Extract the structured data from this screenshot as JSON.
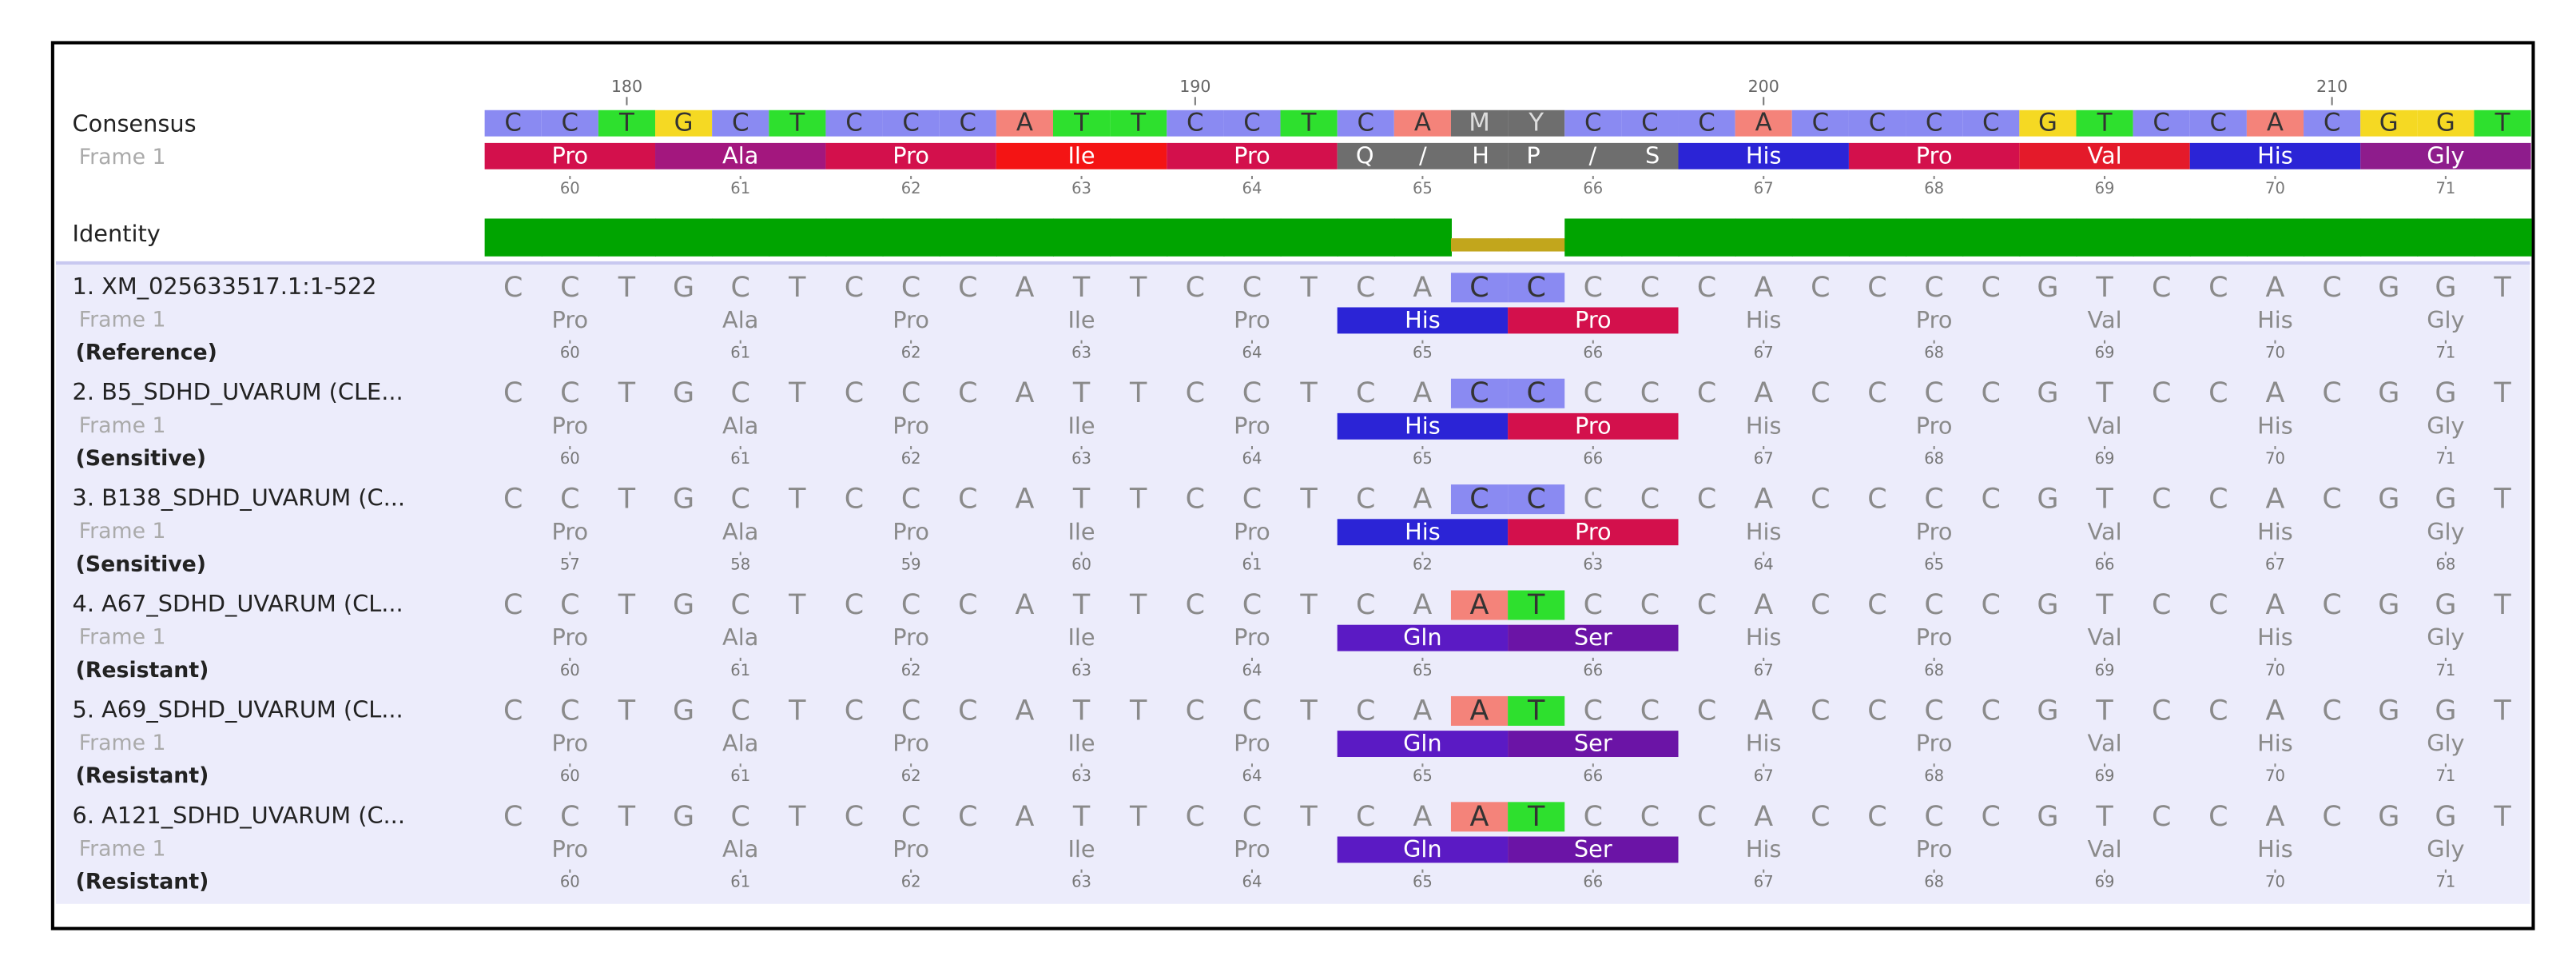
{
  "labels": {
    "consensus": "Consensus",
    "frame": "Frame 1",
    "identity": "Identity"
  },
  "ruler": [
    null,
    null,
    180,
    null,
    null,
    null,
    null,
    null,
    null,
    null,
    null,
    null,
    190,
    null,
    null,
    null,
    null,
    null,
    null,
    null,
    null,
    null,
    200,
    null,
    null,
    null,
    null,
    null,
    null,
    null,
    null,
    null,
    210,
    null,
    null,
    null
  ],
  "consensus": {
    "bases": [
      "C",
      "C",
      "T",
      "G",
      "C",
      "T",
      "C",
      "C",
      "C",
      "A",
      "T",
      "T",
      "C",
      "C",
      "T",
      "C",
      "A",
      "M",
      "Y",
      "C",
      "C",
      "C",
      "A",
      "C",
      "C",
      "C",
      "C",
      "G",
      "T",
      "C",
      "C",
      "A",
      "C",
      "G",
      "G",
      "T"
    ],
    "frame": [
      {
        "name": "Pro",
        "number": 60
      },
      {
        "name": "Ala",
        "number": 61
      },
      {
        "name": "Pro",
        "number": 62
      },
      {
        "name": "Ile",
        "number": 63
      },
      {
        "name": "Pro",
        "number": 64
      },
      {
        "name": "Q / H",
        "number": 65
      },
      {
        "name": "P / S",
        "number": 66
      },
      {
        "name": "His",
        "number": 67
      },
      {
        "name": "Pro",
        "number": 68
      },
      {
        "name": "Val",
        "number": 69
      },
      {
        "name": "His",
        "number": 70
      },
      {
        "name": "Gly",
        "number": 71
      }
    ]
  },
  "rows": [
    {
      "name": "1. XM_025633517.1:1-522",
      "frame_label": "Frame 1",
      "group": "(Reference)",
      "bases": [
        "C",
        "C",
        "T",
        "G",
        "C",
        "T",
        "C",
        "C",
        "C",
        "A",
        "T",
        "T",
        "C",
        "C",
        "T",
        "C",
        "A",
        "C",
        "C",
        "C",
        "C",
        "C",
        "A",
        "C",
        "C",
        "C",
        "C",
        "G",
        "T",
        "C",
        "C",
        "A",
        "C",
        "G",
        "G",
        "T"
      ],
      "frame": [
        {
          "name": "Pro",
          "number": 60
        },
        {
          "name": "Ala",
          "number": 61
        },
        {
          "name": "Pro",
          "number": 62
        },
        {
          "name": "Ile",
          "number": 63
        },
        {
          "name": "Pro",
          "number": 64
        },
        {
          "name": "His",
          "number": 65
        },
        {
          "name": "Pro",
          "number": 66
        },
        {
          "name": "His",
          "number": 67
        },
        {
          "name": "Pro",
          "number": 68
        },
        {
          "name": "Val",
          "number": 69
        },
        {
          "name": "His",
          "number": 70
        },
        {
          "name": "Gly",
          "number": 71
        }
      ]
    },
    {
      "name": "2. B5_SDHD_UVARUM (CLE...",
      "frame_label": "Frame 1",
      "group": "(Sensitive)",
      "bases": [
        "C",
        "C",
        "T",
        "G",
        "C",
        "T",
        "C",
        "C",
        "C",
        "A",
        "T",
        "T",
        "C",
        "C",
        "T",
        "C",
        "A",
        "C",
        "C",
        "C",
        "C",
        "C",
        "A",
        "C",
        "C",
        "C",
        "C",
        "G",
        "T",
        "C",
        "C",
        "A",
        "C",
        "G",
        "G",
        "T"
      ],
      "frame": [
        {
          "name": "Pro",
          "number": 60
        },
        {
          "name": "Ala",
          "number": 61
        },
        {
          "name": "Pro",
          "number": 62
        },
        {
          "name": "Ile",
          "number": 63
        },
        {
          "name": "Pro",
          "number": 64
        },
        {
          "name": "His",
          "number": 65
        },
        {
          "name": "Pro",
          "number": 66
        },
        {
          "name": "His",
          "number": 67
        },
        {
          "name": "Pro",
          "number": 68
        },
        {
          "name": "Val",
          "number": 69
        },
        {
          "name": "His",
          "number": 70
        },
        {
          "name": "Gly",
          "number": 71
        }
      ]
    },
    {
      "name": "3. B138_SDHD_UVARUM (C...",
      "frame_label": "Frame 1",
      "group": "(Sensitive)",
      "bases": [
        "C",
        "C",
        "T",
        "G",
        "C",
        "T",
        "C",
        "C",
        "C",
        "A",
        "T",
        "T",
        "C",
        "C",
        "T",
        "C",
        "A",
        "C",
        "C",
        "C",
        "C",
        "C",
        "A",
        "C",
        "C",
        "C",
        "C",
        "G",
        "T",
        "C",
        "C",
        "A",
        "C",
        "G",
        "G",
        "T"
      ],
      "frame": [
        {
          "name": "Pro",
          "number": 57
        },
        {
          "name": "Ala",
          "number": 58
        },
        {
          "name": "Pro",
          "number": 59
        },
        {
          "name": "Ile",
          "number": 60
        },
        {
          "name": "Pro",
          "number": 61
        },
        {
          "name": "His",
          "number": 62
        },
        {
          "name": "Pro",
          "number": 63
        },
        {
          "name": "His",
          "number": 64
        },
        {
          "name": "Pro",
          "number": 65
        },
        {
          "name": "Val",
          "number": 66
        },
        {
          "name": "His",
          "number": 67
        },
        {
          "name": "Gly",
          "number": 68
        }
      ]
    },
    {
      "name": "4. A67_SDHD_UVARUM (CL...",
      "frame_label": "Frame 1",
      "group": "(Resistant)",
      "bases": [
        "C",
        "C",
        "T",
        "G",
        "C",
        "T",
        "C",
        "C",
        "C",
        "A",
        "T",
        "T",
        "C",
        "C",
        "T",
        "C",
        "A",
        "A",
        "T",
        "C",
        "C",
        "C",
        "A",
        "C",
        "C",
        "C",
        "C",
        "G",
        "T",
        "C",
        "C",
        "A",
        "C",
        "G",
        "G",
        "T"
      ],
      "frame": [
        {
          "name": "Pro",
          "number": 60
        },
        {
          "name": "Ala",
          "number": 61
        },
        {
          "name": "Pro",
          "number": 62
        },
        {
          "name": "Ile",
          "number": 63
        },
        {
          "name": "Pro",
          "number": 64
        },
        {
          "name": "Gln",
          "number": 65
        },
        {
          "name": "Ser",
          "number": 66
        },
        {
          "name": "His",
          "number": 67
        },
        {
          "name": "Pro",
          "number": 68
        },
        {
          "name": "Val",
          "number": 69
        },
        {
          "name": "His",
          "number": 70
        },
        {
          "name": "Gly",
          "number": 71
        }
      ]
    },
    {
      "name": "5. A69_SDHD_UVARUM (CL...",
      "frame_label": "Frame 1",
      "group": "(Resistant)",
      "bases": [
        "C",
        "C",
        "T",
        "G",
        "C",
        "T",
        "C",
        "C",
        "C",
        "A",
        "T",
        "T",
        "C",
        "C",
        "T",
        "C",
        "A",
        "A",
        "T",
        "C",
        "C",
        "C",
        "A",
        "C",
        "C",
        "C",
        "C",
        "G",
        "T",
        "C",
        "C",
        "A",
        "C",
        "G",
        "G",
        "T"
      ],
      "frame": [
        {
          "name": "Pro",
          "number": 60
        },
        {
          "name": "Ala",
          "number": 61
        },
        {
          "name": "Pro",
          "number": 62
        },
        {
          "name": "Ile",
          "number": 63
        },
        {
          "name": "Pro",
          "number": 64
        },
        {
          "name": "Gln",
          "number": 65
        },
        {
          "name": "Ser",
          "number": 66
        },
        {
          "name": "His",
          "number": 67
        },
        {
          "name": "Pro",
          "number": 68
        },
        {
          "name": "Val",
          "number": 69
        },
        {
          "name": "His",
          "number": 70
        },
        {
          "name": "Gly",
          "number": 71
        }
      ]
    },
    {
      "name": "6. A121_SDHD_UVARUM (C...",
      "frame_label": "Frame 1",
      "group": "(Resistant)",
      "bases": [
        "C",
        "C",
        "T",
        "G",
        "C",
        "T",
        "C",
        "C",
        "C",
        "A",
        "T",
        "T",
        "C",
        "C",
        "T",
        "C",
        "A",
        "A",
        "T",
        "C",
        "C",
        "C",
        "A",
        "C",
        "C",
        "C",
        "C",
        "G",
        "T",
        "C",
        "C",
        "A",
        "C",
        "G",
        "G",
        "T"
      ],
      "frame": [
        {
          "name": "Pro",
          "number": 60
        },
        {
          "name": "Ala",
          "number": 61
        },
        {
          "name": "Pro",
          "number": 62
        },
        {
          "name": "Ile",
          "number": 63
        },
        {
          "name": "Pro",
          "number": 64
        },
        {
          "name": "Gln",
          "number": 65
        },
        {
          "name": "Ser",
          "number": 66
        },
        {
          "name": "His",
          "number": 67
        },
        {
          "name": "Pro",
          "number": 68
        },
        {
          "name": "Val",
          "number": 69
        },
        {
          "name": "His",
          "number": 70
        },
        {
          "name": "Gly",
          "number": 71
        }
      ]
    }
  ],
  "nucleotide_colors": {
    "A": "#f4837a",
    "C": "#8a8af2",
    "G": "#f5d923",
    "T": "#2ee02e",
    "M": "#6e6e6e",
    "Y": "#6e6e6e"
  },
  "amino_acid_colors": {
    "Pro": "#d3104c",
    "Ala": "#a3177e",
    "Ile": "#f41414",
    "His": "#2b24d6",
    "Val": "#e41a2a",
    "Gly": "#8e1c8c",
    "Gln": "#5b1ac4",
    "Ser": "#6b14a6",
    "Q / H": "#6e6e6e",
    "P / S": "#6e6e6e"
  }
}
